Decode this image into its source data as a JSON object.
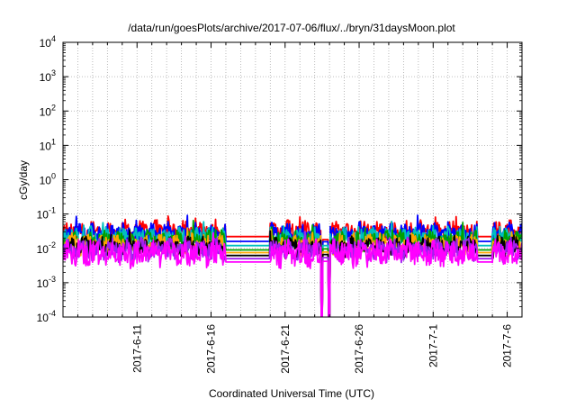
{
  "chart_data": {
    "type": "line",
    "title": "/data/run/goesPlots/archive/2017-07-06/flux/../bryn/31daysMoon.plot",
    "xlabel": "Coordinated Universal Time (UTC)",
    "ylabel": "cGy/day",
    "y_scale": "log",
    "ylim": [
      0.0001,
      10000
    ],
    "y_ticks": [
      {
        "value": 0.0001,
        "base": "10",
        "exp": "-4"
      },
      {
        "value": 0.001,
        "base": "10",
        "exp": "-3"
      },
      {
        "value": 0.01,
        "base": "10",
        "exp": "-2"
      },
      {
        "value": 0.1,
        "base": "10",
        "exp": "-1"
      },
      {
        "value": 1,
        "base": "10",
        "exp": "0"
      },
      {
        "value": 10,
        "base": "10",
        "exp": "1"
      },
      {
        "value": 100,
        "base": "10",
        "exp": "2"
      },
      {
        "value": 1000,
        "base": "10",
        "exp": "3"
      },
      {
        "value": 10000,
        "base": "10",
        "exp": "4"
      }
    ],
    "xlim": [
      "2017-06-06",
      "2017-07-07"
    ],
    "x_ticks": [
      "2017-6-11",
      "2017-6-16",
      "2017-6-21",
      "2017-6-26",
      "2017-7-1",
      "2017-7-6"
    ],
    "grid": true,
    "legend": "none",
    "data_gaps": [
      [
        "2017-06-17",
        "2017-06-20"
      ],
      [
        "2017-07-04",
        "2017-07-05"
      ]
    ],
    "dropouts": [
      "2017-06-23",
      "2017-06-24"
    ],
    "series": [
      {
        "color": "#ff0000",
        "base": 0.03,
        "gap_level": 0.022,
        "amp": 0.55,
        "seed": 11
      },
      {
        "color": "#0000ff",
        "base": 0.026,
        "gap_level": 0.016,
        "amp": 0.55,
        "seed": 12
      },
      {
        "color": "#00bfbf",
        "base": 0.02,
        "gap_level": 0.012,
        "amp": 0.5,
        "seed": 13
      },
      {
        "color": "#00a000",
        "base": 0.016,
        "gap_level": 0.009,
        "amp": 0.5,
        "seed": 14
      },
      {
        "color": "#ffa500",
        "base": 0.013,
        "gap_level": 0.0075,
        "amp": 0.5,
        "seed": 15
      },
      {
        "color": "#000000",
        "base": 0.011,
        "gap_level": 0.0062,
        "amp": 0.5,
        "seed": 16
      },
      {
        "color": "#a020f0",
        "base": 0.009,
        "gap_level": 0.005,
        "amp": 0.55,
        "seed": 17
      },
      {
        "color": "#ff00ff",
        "base": 0.007,
        "gap_level": 0.004,
        "amp": 0.7,
        "seed": 18
      }
    ]
  }
}
